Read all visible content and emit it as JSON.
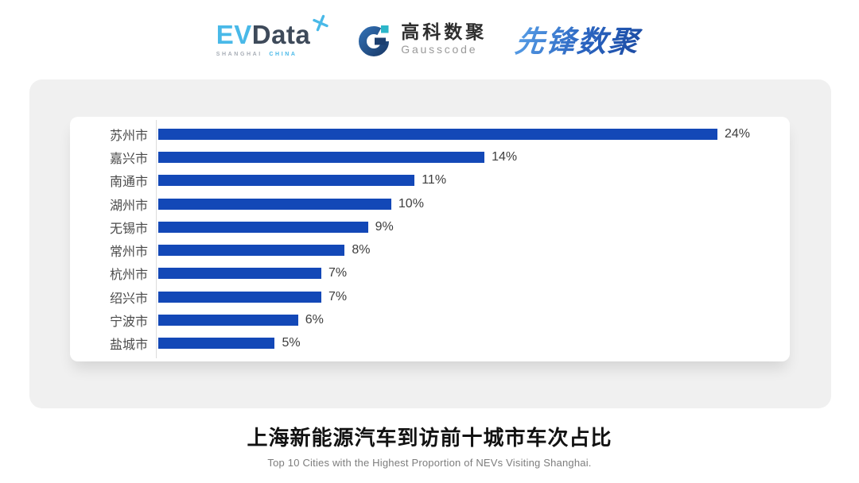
{
  "header": {
    "evdata": {
      "ev": "EV",
      "data": "Data",
      "sub_left": "SHANGHAI",
      "sub_right": "CHINA"
    },
    "gausscode": {
      "cn": "高科数聚",
      "en": "Gausscode"
    },
    "pioneer": {
      "text": "先锋数聚"
    }
  },
  "chart_data": {
    "type": "bar",
    "orientation": "horizontal",
    "title": "上海新能源汽车到访前十城市车次占比",
    "subtitle": "Top 10 Cities with the Highest Proportion of  NEVs Visiting Shanghai.",
    "categories": [
      "苏州市",
      "嘉兴市",
      "南通市",
      "湖州市",
      "无锡市",
      "常州市",
      "杭州市",
      "绍兴市",
      "宁波市",
      "盐城市"
    ],
    "values": [
      24,
      14,
      11,
      10,
      9,
      8,
      7,
      7,
      6,
      5
    ],
    "value_labels": [
      "24%",
      "14%",
      "11%",
      "10%",
      "9%",
      "8%",
      "7%",
      "7%",
      "6%",
      "5%"
    ],
    "unit": "%",
    "xlim": [
      0,
      24
    ],
    "grid": false,
    "legend": "none",
    "bar_color": "#1348b7"
  },
  "footer": {
    "title": "上海新能源汽车到访前十城市车次占比",
    "subtitle": "Top 10 Cities with the Highest Proportion of  NEVs Visiting Shanghai."
  },
  "colors": {
    "bar": "#1348b7",
    "panel_bg": "#f0f0f0",
    "card_bg": "#ffffff",
    "axis_line": "#dcdcdc",
    "evdata_blue": "#49b9e8",
    "evdata_dark": "#3e4a5a",
    "gauss_navy": "#1c3f6f",
    "gauss_teal": "#2cb6c9",
    "pioneer_blue": "#2a64c0"
  }
}
